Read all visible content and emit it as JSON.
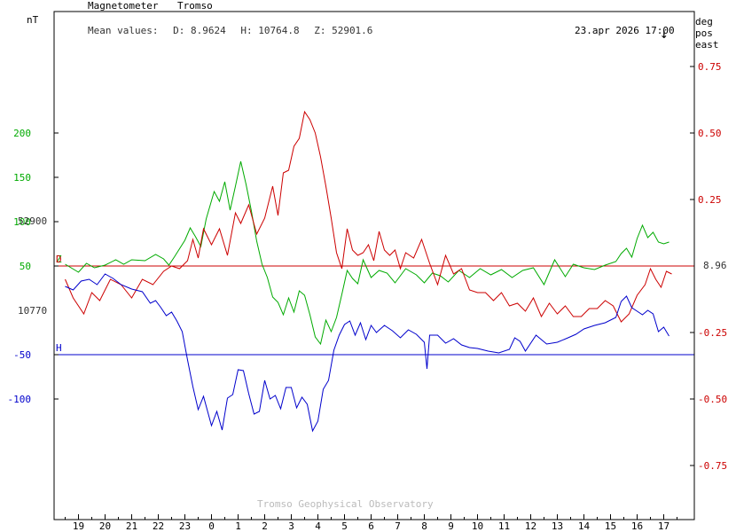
{
  "header": {
    "instrument": "Magnetometer",
    "station": "Tromso",
    "mean_label": "Mean values:",
    "mean_D": "D: 8.9624",
    "mean_H": "H: 10764.8",
    "mean_Z": "Z: 52901.6",
    "timestamp": "23.apr 2026 17:00",
    "arrow": "↓"
  },
  "footer": {
    "credit": "Tromso Geophysical Observatory"
  },
  "units": {
    "left": "nT",
    "right_line1": "deg",
    "right_line2": "pos east"
  },
  "baselines": {
    "Z": {
      "label": "Z",
      "value_text": "52900",
      "color": "#00aa00"
    },
    "D": {
      "label": "D",
      "value_text": "8.96",
      "color": "#cc0000"
    },
    "H": {
      "label": "H",
      "value_text": "10770",
      "color": "#0000cc"
    }
  },
  "chart_data": {
    "type": "line",
    "x_label_ticks": [
      "19",
      "20",
      "21",
      "22",
      "23",
      "0",
      "1",
      "2",
      "3",
      "4",
      "5",
      "6",
      "7",
      "8",
      "9",
      "10",
      "11",
      "12",
      "13",
      "14",
      "15",
      "16",
      "17"
    ],
    "x_range_hours": [
      -5.5,
      17.7
    ],
    "left_axis": {
      "unit": "nT",
      "ticks": [
        {
          "v": 200,
          "color": "#00aa00"
        },
        {
          "v": 150,
          "color": "#00aa00"
        },
        {
          "v": 100,
          "color": "#00aa00"
        },
        {
          "v": 50,
          "color": "#00aa00"
        },
        {
          "v": -50,
          "color": "#0000cc"
        },
        {
          "v": -100,
          "color": "#0000cc"
        }
      ]
    },
    "right_axis": {
      "unit": "deg pos east",
      "color": "#cc0000",
      "ticks": [
        0.75,
        0.5,
        0.25,
        -0.25,
        -0.5,
        -0.75
      ]
    },
    "series": [
      {
        "name": "Z",
        "color": "#00aa00",
        "axis": "left",
        "base_nT": 50,
        "points": [
          [
            -5.5,
            52
          ],
          [
            -5,
            43
          ],
          [
            -4.7,
            53
          ],
          [
            -4.4,
            48
          ],
          [
            -4,
            51
          ],
          [
            -3.6,
            57
          ],
          [
            -3.3,
            52
          ],
          [
            -3,
            57
          ],
          [
            -2.5,
            56
          ],
          [
            -2.1,
            63
          ],
          [
            -1.8,
            58
          ],
          [
            -1.6,
            51
          ],
          [
            -1.4,
            60
          ],
          [
            -1,
            79
          ],
          [
            -0.8,
            93
          ],
          [
            -0.6,
            83
          ],
          [
            -0.4,
            72
          ],
          [
            -0.2,
            103
          ],
          [
            0.1,
            134
          ],
          [
            0.3,
            123
          ],
          [
            0.5,
            145
          ],
          [
            0.7,
            113
          ],
          [
            0.9,
            140
          ],
          [
            1.1,
            168
          ],
          [
            1.3,
            142
          ],
          [
            1.5,
            112
          ],
          [
            1.7,
            78
          ],
          [
            1.9,
            52
          ],
          [
            2.1,
            37
          ],
          [
            2.3,
            15
          ],
          [
            2.5,
            9
          ],
          [
            2.7,
            -5
          ],
          [
            2.9,
            14
          ],
          [
            3.1,
            -2
          ],
          [
            3.3,
            22
          ],
          [
            3.5,
            17
          ],
          [
            3.7,
            -5
          ],
          [
            3.9,
            -30
          ],
          [
            4.1,
            -38
          ],
          [
            4.3,
            -11
          ],
          [
            4.5,
            -24
          ],
          [
            4.7,
            -8
          ],
          [
            4.9,
            18
          ],
          [
            5.1,
            45
          ],
          [
            5.3,
            36
          ],
          [
            5.5,
            30
          ],
          [
            5.7,
            57
          ],
          [
            6,
            37
          ],
          [
            6.3,
            45
          ],
          [
            6.6,
            42
          ],
          [
            6.9,
            31
          ],
          [
            7.3,
            47
          ],
          [
            7.7,
            40
          ],
          [
            8,
            31
          ],
          [
            8.3,
            42
          ],
          [
            8.6,
            39
          ],
          [
            8.9,
            32
          ],
          [
            9.3,
            45
          ],
          [
            9.7,
            37
          ],
          [
            10.1,
            47
          ],
          [
            10.5,
            40
          ],
          [
            10.9,
            46
          ],
          [
            11.3,
            37
          ],
          [
            11.7,
            45
          ],
          [
            12.1,
            48
          ],
          [
            12.5,
            29
          ],
          [
            12.9,
            57
          ],
          [
            13.3,
            38
          ],
          [
            13.6,
            52
          ],
          [
            14,
            48
          ],
          [
            14.4,
            46
          ],
          [
            14.8,
            51
          ],
          [
            15.2,
            55
          ],
          [
            15.4,
            64
          ],
          [
            15.6,
            70
          ],
          [
            15.8,
            60
          ],
          [
            16,
            81
          ],
          [
            16.2,
            96
          ],
          [
            16.4,
            82
          ],
          [
            16.6,
            88
          ],
          [
            16.8,
            77
          ],
          [
            17,
            75
          ],
          [
            17.2,
            77
          ]
        ]
      },
      {
        "name": "D",
        "color": "#cc0000",
        "axis": "right",
        "base_deg": 8.96,
        "points": [
          [
            -5.5,
            -0.05
          ],
          [
            -5.2,
            -0.12
          ],
          [
            -4.8,
            -0.18
          ],
          [
            -4.5,
            -0.1
          ],
          [
            -4.2,
            -0.13
          ],
          [
            -3.8,
            -0.05
          ],
          [
            -3.4,
            -0.07
          ],
          [
            -3,
            -0.12
          ],
          [
            -2.6,
            -0.05
          ],
          [
            -2.2,
            -0.07
          ],
          [
            -1.8,
            -0.02
          ],
          [
            -1.5,
            0
          ],
          [
            -1.2,
            -0.01
          ],
          [
            -0.9,
            0.02
          ],
          [
            -0.7,
            0.1
          ],
          [
            -0.5,
            0.03
          ],
          [
            -0.3,
            0.14
          ],
          [
            0,
            0.08
          ],
          [
            0.3,
            0.14
          ],
          [
            0.6,
            0.04
          ],
          [
            0.9,
            0.2
          ],
          [
            1.1,
            0.16
          ],
          [
            1.4,
            0.23
          ],
          [
            1.7,
            0.12
          ],
          [
            2,
            0.18
          ],
          [
            2.3,
            0.3
          ],
          [
            2.5,
            0.19
          ],
          [
            2.7,
            0.35
          ],
          [
            2.9,
            0.36
          ],
          [
            3.1,
            0.45
          ],
          [
            3.3,
            0.48
          ],
          [
            3.5,
            0.58
          ],
          [
            3.7,
            0.55
          ],
          [
            3.9,
            0.5
          ],
          [
            4.1,
            0.41
          ],
          [
            4.3,
            0.3
          ],
          [
            4.5,
            0.18
          ],
          [
            4.7,
            0.05
          ],
          [
            4.9,
            -0.01
          ],
          [
            5.1,
            0.14
          ],
          [
            5.3,
            0.06
          ],
          [
            5.5,
            0.04
          ],
          [
            5.7,
            0.05
          ],
          [
            5.9,
            0.08
          ],
          [
            6.1,
            0.02
          ],
          [
            6.3,
            0.13
          ],
          [
            6.5,
            0.06
          ],
          [
            6.7,
            0.04
          ],
          [
            6.9,
            0.06
          ],
          [
            7.1,
            -0.01
          ],
          [
            7.3,
            0.05
          ],
          [
            7.6,
            0.03
          ],
          [
            7.9,
            0.1
          ],
          [
            8.2,
            0.01
          ],
          [
            8.5,
            -0.07
          ],
          [
            8.8,
            0.04
          ],
          [
            9.1,
            -0.03
          ],
          [
            9.4,
            -0.01
          ],
          [
            9.7,
            -0.09
          ],
          [
            10,
            -0.1
          ],
          [
            10.3,
            -0.1
          ],
          [
            10.6,
            -0.13
          ],
          [
            10.9,
            -0.1
          ],
          [
            11.2,
            -0.15
          ],
          [
            11.5,
            -0.14
          ],
          [
            11.8,
            -0.17
          ],
          [
            12.1,
            -0.12
          ],
          [
            12.4,
            -0.19
          ],
          [
            12.7,
            -0.14
          ],
          [
            13,
            -0.18
          ],
          [
            13.3,
            -0.15
          ],
          [
            13.6,
            -0.19
          ],
          [
            13.9,
            -0.19
          ],
          [
            14.2,
            -0.16
          ],
          [
            14.5,
            -0.16
          ],
          [
            14.8,
            -0.13
          ],
          [
            15.1,
            -0.15
          ],
          [
            15.4,
            -0.21
          ],
          [
            15.7,
            -0.18
          ],
          [
            16,
            -0.11
          ],
          [
            16.3,
            -0.07
          ],
          [
            16.5,
            -0.01
          ],
          [
            16.7,
            -0.05
          ],
          [
            16.9,
            -0.08
          ],
          [
            17.1,
            -0.02
          ],
          [
            17.3,
            -0.03
          ]
        ]
      },
      {
        "name": "H",
        "color": "#0000cc",
        "axis": "left",
        "base_nT": -50,
        "points": [
          [
            -5.5,
            27
          ],
          [
            -5.2,
            23
          ],
          [
            -4.9,
            33
          ],
          [
            -4.6,
            35
          ],
          [
            -4.3,
            29
          ],
          [
            -4,
            41
          ],
          [
            -3.7,
            36
          ],
          [
            -3.4,
            29
          ],
          [
            -3,
            24
          ],
          [
            -2.6,
            21
          ],
          [
            -2.3,
            8
          ],
          [
            -2.1,
            11
          ],
          [
            -1.9,
            3
          ],
          [
            -1.7,
            -6
          ],
          [
            -1.5,
            -2
          ],
          [
            -1.3,
            -12
          ],
          [
            -1.1,
            -24
          ],
          [
            -0.9,
            -56
          ],
          [
            -0.7,
            -86
          ],
          [
            -0.5,
            -112
          ],
          [
            -0.3,
            -97
          ],
          [
            0,
            -130
          ],
          [
            0.2,
            -114
          ],
          [
            0.4,
            -135
          ],
          [
            0.6,
            -99
          ],
          [
            0.8,
            -95
          ],
          [
            1,
            -67
          ],
          [
            1.2,
            -68
          ],
          [
            1.4,
            -94
          ],
          [
            1.6,
            -117
          ],
          [
            1.8,
            -114
          ],
          [
            2,
            -79
          ],
          [
            2.2,
            -100
          ],
          [
            2.4,
            -96
          ],
          [
            2.6,
            -111
          ],
          [
            2.8,
            -87
          ],
          [
            3,
            -87
          ],
          [
            3.2,
            -110
          ],
          [
            3.4,
            -98
          ],
          [
            3.6,
            -106
          ],
          [
            3.8,
            -136
          ],
          [
            4,
            -125
          ],
          [
            4.2,
            -89
          ],
          [
            4.4,
            -79
          ],
          [
            4.6,
            -45
          ],
          [
            4.8,
            -28
          ],
          [
            5,
            -16
          ],
          [
            5.2,
            -12
          ],
          [
            5.4,
            -28
          ],
          [
            5.6,
            -14
          ],
          [
            5.8,
            -33
          ],
          [
            6,
            -17
          ],
          [
            6.2,
            -25
          ],
          [
            6.5,
            -17
          ],
          [
            6.8,
            -23
          ],
          [
            7.1,
            -31
          ],
          [
            7.4,
            -22
          ],
          [
            7.7,
            -27
          ],
          [
            8,
            -36
          ],
          [
            8.1,
            -66
          ],
          [
            8.2,
            -28
          ],
          [
            8.5,
            -28
          ],
          [
            8.8,
            -37
          ],
          [
            9.1,
            -32
          ],
          [
            9.4,
            -39
          ],
          [
            9.7,
            -42
          ],
          [
            10,
            -43
          ],
          [
            10.4,
            -46
          ],
          [
            10.8,
            -48
          ],
          [
            11.2,
            -44
          ],
          [
            11.4,
            -31
          ],
          [
            11.6,
            -35
          ],
          [
            11.8,
            -46
          ],
          [
            12.2,
            -28
          ],
          [
            12.6,
            -38
          ],
          [
            13,
            -36
          ],
          [
            13.4,
            -31
          ],
          [
            13.7,
            -27
          ],
          [
            14,
            -21
          ],
          [
            14.4,
            -17
          ],
          [
            14.8,
            -14
          ],
          [
            15.2,
            -8
          ],
          [
            15.4,
            10
          ],
          [
            15.6,
            16
          ],
          [
            15.8,
            3
          ],
          [
            16,
            -1
          ],
          [
            16.2,
            -5
          ],
          [
            16.4,
            0
          ],
          [
            16.6,
            -4
          ],
          [
            16.8,
            -24
          ],
          [
            17,
            -19
          ],
          [
            17.2,
            -29
          ]
        ]
      }
    ]
  }
}
